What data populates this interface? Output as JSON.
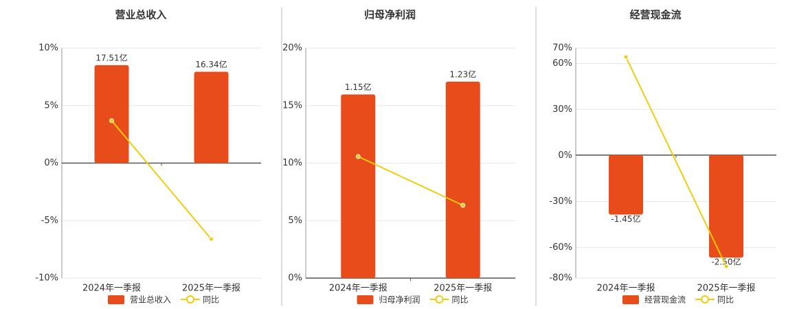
{
  "chart_data": [
    {
      "type": "bar",
      "title": "营业总收入",
      "categories": [
        "2024年一季报",
        "2025年一季报"
      ],
      "series": [
        {
          "name": "营业总收入",
          "color": "#e84c1a",
          "axis": "y2",
          "values": [
            17.51,
            16.34
          ],
          "value_labels": [
            "17.51亿",
            "16.34亿"
          ]
        },
        {
          "name": "同比",
          "type": "line",
          "color": "#f2cc0c",
          "values": [
            3.69,
            -6.61
          ]
        }
      ],
      "ylim": [
        -10,
        10
      ],
      "yticks": [
        {
          "value": -10,
          "label": "-10%"
        },
        {
          "value": -5,
          "label": "-5%"
        },
        {
          "value": 0,
          "label": "0%"
        },
        {
          "value": 5,
          "label": "5%"
        },
        {
          "value": 10,
          "label": "10%"
        }
      ],
      "y2lim": [
        -20.57,
        20.57
      ],
      "grid": true
    },
    {
      "type": "bar",
      "title": "归母净利润",
      "categories": [
        "2024年一季报",
        "2025年一季报"
      ],
      "series": [
        {
          "name": "归母净利润",
          "color": "#e84c1a",
          "axis": "y2",
          "values": [
            1.15,
            1.23
          ],
          "value_labels": [
            "1.15亿",
            "1.23亿"
          ]
        },
        {
          "name": "同比",
          "type": "line",
          "color": "#f2cc0c",
          "values": [
            10.57,
            6.33
          ]
        }
      ],
      "ylim": [
        0,
        20
      ],
      "yticks": [
        {
          "value": 0,
          "label": "0%"
        },
        {
          "value": 5,
          "label": "5%"
        },
        {
          "value": 10,
          "label": "10%"
        },
        {
          "value": 15,
          "label": "15%"
        },
        {
          "value": 20,
          "label": "20%"
        }
      ],
      "y2lim": [
        0,
        1.44
      ],
      "grid": true
    },
    {
      "type": "bar",
      "title": "经营现金流",
      "categories": [
        "2024年一季报",
        "2025年一季报"
      ],
      "series": [
        {
          "name": "经营现金流",
          "color": "#e84c1a",
          "axis": "y2",
          "values": [
            -1.45,
            -2.5
          ],
          "value_labels": [
            "-1.45亿",
            "-2.50亿"
          ]
        },
        {
          "name": "同比",
          "type": "line",
          "color": "#f2cc0c",
          "values": [
            64.2,
            -72.4
          ]
        }
      ],
      "ylim": [
        -80,
        70
      ],
      "yticks": [
        {
          "value": -80,
          "label": "-80%"
        },
        {
          "value": -60,
          "label": "-60%"
        },
        {
          "value": -30,
          "label": "-30%"
        },
        {
          "value": 0,
          "label": "0%"
        },
        {
          "value": 30,
          "label": "30%"
        },
        {
          "value": 60,
          "label": "60%"
        },
        {
          "value": 70,
          "label": "70%"
        }
      ],
      "y2lim": [
        -3.0,
        2.61
      ],
      "grid": true
    }
  ]
}
